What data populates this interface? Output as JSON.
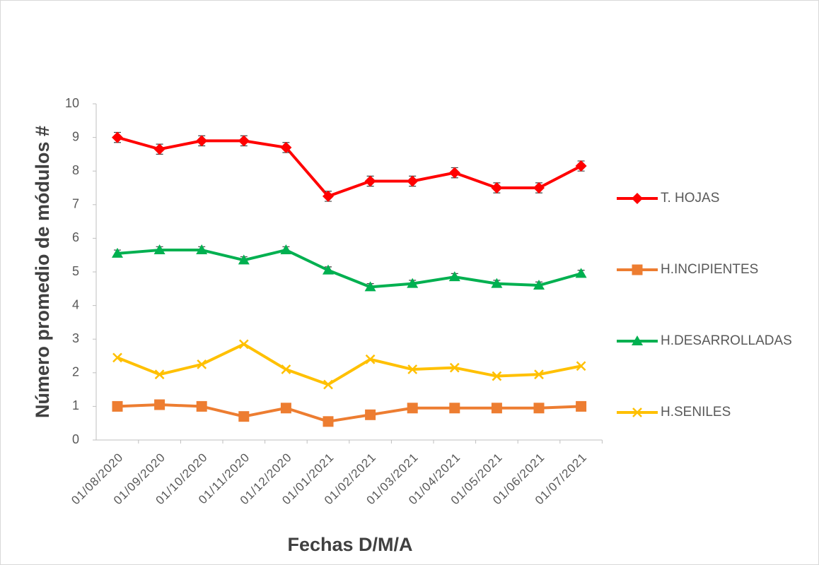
{
  "chart_data": {
    "type": "line",
    "x_label": "Fechas D/M/A",
    "y_label": "Número promedio de módulos #",
    "categories": [
      "01/08/2020",
      "01/09/2020",
      "01/10/2020",
      "01/11/2020",
      "01/12/2020",
      "01/01/2021",
      "01/02/2021",
      "01/03/2021",
      "01/04/2021",
      "01/05/2021",
      "01/06/2021",
      "01/07/2021"
    ],
    "series": [
      {
        "name": "T. HOJAS",
        "color": "#ff0000",
        "marker": "diamond",
        "values": [
          9.0,
          8.65,
          8.9,
          8.9,
          8.7,
          7.25,
          7.7,
          7.7,
          7.95,
          7.5,
          7.5,
          8.15
        ],
        "errors": [
          0.15,
          0.15,
          0.15,
          0.15,
          0.15,
          0.15,
          0.15,
          0.15,
          0.15,
          0.15,
          0.15,
          0.15
        ]
      },
      {
        "name": "H.INCIPIENTES",
        "color": "#ed7d31",
        "marker": "square",
        "values": [
          1.0,
          1.05,
          1.0,
          0.7,
          0.95,
          0.55,
          0.75,
          0.95,
          0.95,
          0.95,
          0.95,
          1.0
        ]
      },
      {
        "name": "H.DESARROLLADAS",
        "color": "#00b050",
        "marker": "triangle",
        "values": [
          5.55,
          5.65,
          5.65,
          5.35,
          5.65,
          5.05,
          4.55,
          4.65,
          4.85,
          4.65,
          4.6,
          4.95
        ],
        "errors": [
          0.1,
          0.1,
          0.1,
          0.1,
          0.1,
          0.1,
          0.1,
          0.1,
          0.1,
          0.1,
          0.1,
          0.1
        ]
      },
      {
        "name": "H.SENILES",
        "color": "#ffc000",
        "marker": "x",
        "values": [
          2.45,
          1.95,
          2.25,
          2.85,
          2.1,
          1.65,
          2.4,
          2.1,
          2.15,
          1.9,
          1.95,
          2.2
        ]
      }
    ],
    "ylim": [
      0,
      10
    ],
    "yticks": [
      0,
      1,
      2,
      3,
      4,
      5,
      6,
      7,
      8,
      9,
      10
    ],
    "grid": false,
    "legend": "right"
  }
}
